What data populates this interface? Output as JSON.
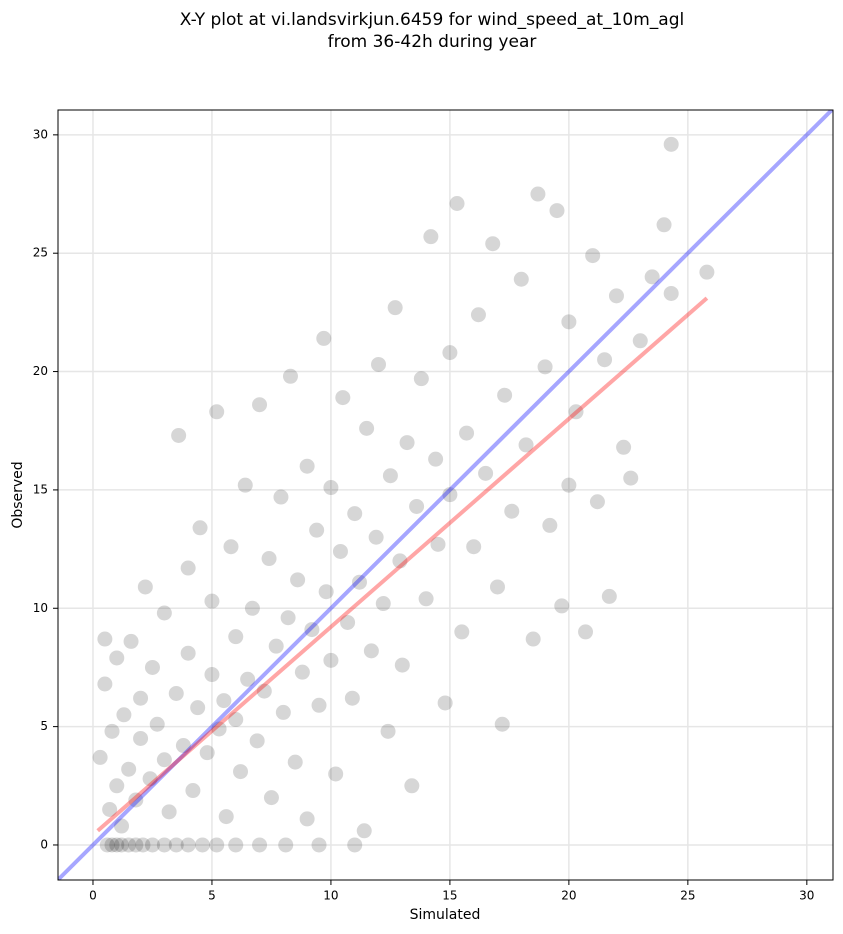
{
  "chart_data": {
    "type": "scatter",
    "title": [
      "X-Y plot at vi.landsvirkjun.6459 for wind_speed_at_10m_agl",
      "from 36-42h during year"
    ],
    "x_label": "Simulated",
    "y_label": "Observed",
    "xlim": [
      -1.47,
      31.1
    ],
    "ylim": [
      -1.48,
      31.05
    ],
    "xticks": [
      0,
      5,
      10,
      15,
      20,
      25,
      30
    ],
    "yticks": [
      0,
      5,
      10,
      15,
      20,
      25,
      30
    ],
    "grid": true,
    "color": "#000000",
    "x": [
      0.6,
      0.8,
      1.0,
      1.2,
      1.5,
      1.8,
      2.1,
      2.5,
      3.0,
      3.5,
      4.0,
      4.6,
      5.2,
      6.0,
      7.0,
      8.1,
      9.5,
      11.0,
      0.3,
      0.5,
      0.5,
      0.7,
      0.8,
      1,
      1,
      1.2,
      1.3,
      1.5,
      1.6,
      1.8,
      2,
      2,
      2.2,
      2.4,
      2.5,
      2.7,
      3,
      3,
      3.2,
      3.5,
      3.6,
      3.8,
      4,
      4,
      4.2,
      4.4,
      4.5,
      4.8,
      5,
      5,
      5.2,
      5.3,
      5.5,
      5.6,
      5.8,
      6,
      6,
      6.2,
      6.4,
      6.5,
      6.7,
      6.9,
      7,
      7.2,
      7.4,
      7.5,
      7.7,
      7.9,
      8,
      8.2,
      8.3,
      8.5,
      8.6,
      8.8,
      9,
      9,
      9.2,
      9.4,
      9.5,
      9.7,
      9.8,
      10,
      10,
      10.2,
      10.4,
      10.5,
      10.7,
      10.9,
      11,
      11.2,
      11.4,
      11.5,
      11.7,
      11.9,
      12,
      12.2,
      12.4,
      12.5,
      12.7,
      12.9,
      13,
      13.2,
      13.4,
      13.6,
      13.8,
      14,
      14.2,
      14.4,
      14.5,
      14.8,
      15,
      15,
      15.3,
      15.5,
      15.7,
      16,
      16.2,
      16.5,
      16.8,
      17,
      17.2,
      17.3,
      17.6,
      18,
      18.2,
      18.5,
      18.7,
      19,
      19.2,
      19.5,
      19.7,
      20,
      20,
      20.3,
      20.7,
      21,
      21.2,
      21.5,
      21.7,
      22,
      22.3,
      22.6,
      23,
      23.5,
      24,
      24.3,
      24.3,
      25.8
    ],
    "values": [
      0,
      0,
      0,
      0,
      0,
      0,
      0,
      0,
      0,
      0,
      0,
      0,
      0,
      0,
      0,
      0,
      0,
      0,
      3.7,
      6.8,
      8.7,
      1.5,
      4.8,
      2.5,
      7.9,
      0.8,
      5.5,
      3.2,
      8.6,
      1.9,
      4.5,
      6.2,
      10.9,
      2.8,
      7.5,
      5.1,
      3.6,
      9.8,
      1.4,
      6.4,
      17.3,
      4.2,
      8.1,
      11.7,
      2.3,
      5.8,
      13.4,
      3.9,
      7.2,
      10.3,
      18.3,
      4.9,
      6.1,
      1.2,
      12.6,
      5.3,
      8.8,
      3.1,
      15.2,
      7.0,
      10.0,
      4.4,
      18.6,
      6.5,
      12.1,
      2.0,
      8.4,
      14.7,
      5.6,
      9.6,
      19.8,
      3.5,
      11.2,
      7.3,
      16.0,
      1.1,
      9.1,
      13.3,
      5.9,
      21.4,
      10.7,
      7.8,
      15.1,
      3.0,
      12.4,
      18.9,
      9.4,
      6.2,
      14.0,
      11.1,
      0.6,
      17.6,
      8.2,
      13.0,
      20.3,
      10.2,
      4.8,
      15.6,
      22.7,
      12.0,
      7.6,
      17.0,
      2.5,
      14.3,
      19.7,
      10.4,
      25.7,
      16.3,
      12.7,
      6.0,
      20.8,
      14.8,
      27.1,
      9.0,
      17.4,
      12.6,
      22.4,
      15.7,
      25.4,
      10.9,
      5.1,
      19.0,
      14.1,
      23.9,
      16.9,
      8.7,
      27.5,
      20.2,
      13.5,
      26.8,
      10.1,
      22.1,
      15.2,
      18.3,
      9.0,
      24.9,
      14.5,
      20.5,
      10.5,
      23.2,
      16.8,
      15.5,
      21.3,
      24.0,
      26.2,
      29.6,
      23.3,
      24.2
    ],
    "lines": [
      {
        "color": "#0000ff",
        "x": [
          -1.47,
          31.1
        ],
        "values": [
          -1.47,
          31.1
        ]
      },
      {
        "color": "#ff0000",
        "x": [
          0.2,
          25.8
        ],
        "values": [
          0.6,
          23.1
        ]
      }
    ]
  }
}
